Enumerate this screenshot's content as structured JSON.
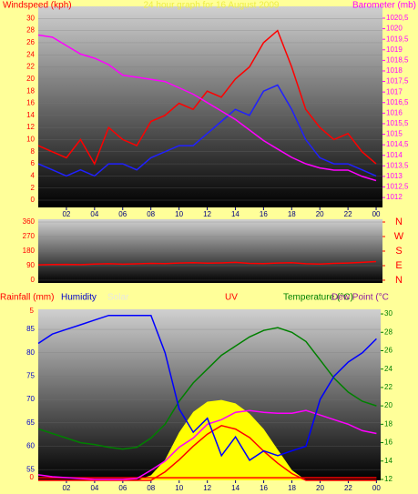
{
  "chart_data": [
    {
      "type": "line",
      "title": "24 hour graph for 16 August 2009",
      "ylabel": "Windspeed (kph)",
      "y2label": "Barometer (mb)",
      "x": [
        0,
        1,
        2,
        3,
        4,
        5,
        6,
        7,
        8,
        9,
        10,
        11,
        12,
        13,
        14,
        15,
        16,
        17,
        18,
        19,
        20,
        21,
        22,
        23,
        24
      ],
      "xlim": [
        0,
        24.45
      ],
      "xticks": [
        {
          "value": 2,
          "label": "02"
        },
        {
          "value": 4,
          "label": "04"
        },
        {
          "value": 6,
          "label": "06"
        },
        {
          "value": 8,
          "label": "08"
        },
        10,
        12,
        14,
        16,
        18,
        20,
        22,
        {
          "value": 24,
          "label": "00"
        }
      ],
      "ylim": [
        -1.2,
        32
      ],
      "yticks": [
        0,
        2,
        4,
        6,
        8,
        10,
        12,
        14,
        16,
        18,
        20,
        22,
        24,
        26,
        28,
        30
      ],
      "y2lim": [
        1011.53,
        1021.06
      ],
      "y2ticks": [
        1012,
        {
          "value": 1012.5,
          "label": "1012,5"
        },
        1013,
        {
          "value": 1013.5,
          "label": "1013,5"
        },
        1014,
        {
          "value": 1014.5,
          "label": "1014,5"
        },
        1015,
        {
          "value": 1015.5,
          "label": "1015,5"
        },
        1016,
        {
          "value": 1016.5,
          "label": "1016,5"
        },
        1017,
        {
          "value": 1017.5,
          "label": "1017,5"
        },
        1018,
        {
          "value": 1018.5,
          "label": "1018,5"
        },
        1019,
        {
          "value": 1019.5,
          "label": "1019,5"
        },
        1020,
        {
          "value": 1020.5,
          "label": "1020,5"
        }
      ],
      "series": [
        {
          "color": "#ff0000",
          "values": [
            9,
            8,
            7,
            10,
            6,
            12,
            10,
            9,
            13,
            14,
            16,
            15,
            18,
            17,
            20,
            22,
            26,
            28,
            22,
            15,
            12,
            10,
            11,
            8,
            6
          ]
        },
        {
          "color": "#2020ff",
          "values": [
            6,
            5,
            4,
            5,
            4,
            6,
            6,
            5,
            7,
            8,
            9,
            9,
            11,
            13,
            15,
            14,
            18,
            19,
            15,
            10,
            7,
            6,
            6,
            5,
            4
          ]
        },
        {
          "color": "#ff00ff",
          "axis": "y2",
          "values": [
            1019.7,
            1019.6,
            1019.2,
            1018.8,
            1018.6,
            1018.3,
            1017.8,
            1017.7,
            1017.6,
            1017.5,
            1017.2,
            1016.9,
            1016.5,
            1016.1,
            1015.7,
            1015.2,
            1014.7,
            1014.3,
            1013.9,
            1013.6,
            1013.4,
            1013.3,
            1013.3,
            1013.0,
            1012.8
          ]
        }
      ]
    },
    {
      "type": "line",
      "x": [
        0,
        1,
        2,
        3,
        4,
        5,
        6,
        7,
        8,
        9,
        10,
        11,
        12,
        13,
        14,
        15,
        16,
        17,
        18,
        19,
        20,
        21,
        22,
        23,
        24
      ],
      "xlim": [
        0,
        24.45
      ],
      "ylim": [
        -17,
        377
      ],
      "yticks": [
        0,
        90,
        180,
        270,
        360
      ],
      "y2lim": [
        -17,
        377
      ],
      "y2ticks": [
        {
          "value": 360,
          "label": "N"
        },
        {
          "value": 270,
          "label": "W"
        },
        {
          "value": 180,
          "label": "S"
        },
        {
          "value": 90,
          "label": "E"
        },
        {
          "value": 0,
          "label": "N"
        }
      ],
      "series": [
        {
          "color": "#ff0000",
          "values": [
            95,
            97,
            98,
            96,
            100,
            102,
            99,
            101,
            104,
            103,
            106,
            108,
            105,
            107,
            110,
            104,
            103,
            106,
            108,
            102,
            100,
            104,
            106,
            110,
            115
          ]
        }
      ]
    },
    {
      "type": "line",
      "x": [
        0,
        1,
        2,
        3,
        4,
        5,
        6,
        7,
        8,
        9,
        10,
        11,
        12,
        13,
        14,
        15,
        16,
        17,
        18,
        19,
        20,
        21,
        22,
        23,
        24
      ],
      "xlim": [
        0,
        24.3
      ],
      "xticks": [
        {
          "value": 2,
          "label": "02"
        },
        {
          "value": 4,
          "label": "04"
        },
        {
          "value": 6,
          "label": "06"
        },
        {
          "value": 8,
          "label": "08"
        },
        10,
        12,
        14,
        16,
        18,
        20,
        22,
        {
          "value": 24,
          "label": "00"
        }
      ],
      "ylim": [
        52.7,
        89.3
      ],
      "yticks": [
        55,
        60,
        65,
        70,
        75,
        80,
        85
      ],
      "y2lim": [
        11.9,
        30.5
      ],
      "y2ticks": [
        12,
        14,
        16,
        18,
        20,
        22,
        24,
        26,
        28,
        30
      ],
      "rainlim": [
        -0.08,
        5.05
      ],
      "rainticks": [
        0,
        5
      ],
      "solarlim": [
        0,
        1000
      ],
      "uvlim": [
        0,
        10
      ],
      "series": [
        {
          "name": "Solar",
          "axis": "solar",
          "color": "#ffff00",
          "fill": true,
          "values": [
            0,
            0,
            0,
            0,
            0,
            0,
            0,
            0,
            30,
            120,
            280,
            400,
            460,
            470,
            450,
            390,
            300,
            180,
            60,
            0,
            0,
            0,
            0,
            0,
            0
          ]
        },
        {
          "name": "UV",
          "axis": "uv",
          "color": "#ff0000",
          "values": [
            0,
            0,
            0,
            0,
            0,
            0,
            0,
            0,
            0,
            0.5,
            1.2,
            2,
            2.7,
            3.2,
            3,
            2.5,
            1.7,
            1,
            0.4,
            0,
            0,
            0,
            0,
            0,
            0
          ]
        },
        {
          "name": "Rainfall (mm)",
          "axis": "rain",
          "color": "#ff0000",
          "values": [
            0,
            0,
            0,
            0,
            0,
            0,
            0,
            0,
            0,
            0,
            0,
            0,
            0,
            0,
            0,
            0,
            0,
            0,
            0,
            0,
            0,
            0,
            0,
            0,
            0
          ]
        },
        {
          "name": "Temperature (°C)",
          "axis": "y2",
          "color": "#008000",
          "values": [
            17.5,
            17,
            16.5,
            16,
            15.8,
            15.5,
            15.3,
            15.5,
            16.5,
            18,
            20.5,
            22.5,
            24,
            25.5,
            26.5,
            27.5,
            28.2,
            28.5,
            28,
            27,
            25,
            23,
            21.5,
            20.5,
            20
          ]
        },
        {
          "name": "Dew Point (°C",
          "axis": "y2",
          "color": "#ff00ff",
          "values": [
            12.5,
            12.3,
            12.2,
            12.1,
            12,
            12,
            12,
            12.1,
            13,
            14,
            15.5,
            16.5,
            18,
            18.5,
            19.3,
            19.5,
            19.3,
            19.2,
            19.2,
            19.5,
            19,
            18.5,
            18,
            17.3,
            17
          ]
        },
        {
          "name": "Humidity",
          "color": "#0000ff",
          "values": [
            82,
            84,
            85,
            86,
            87,
            88,
            88,
            88,
            88,
            80,
            68,
            63,
            66,
            58,
            62,
            57,
            59,
            58,
            59,
            60,
            70,
            75,
            78,
            80,
            83
          ]
        }
      ]
    }
  ]
}
